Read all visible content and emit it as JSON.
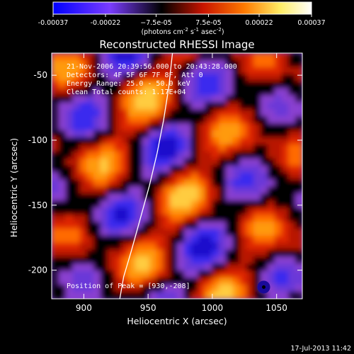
{
  "chart_data": {
    "type": "heatmap",
    "title": "Reconstructed RHESSI Image",
    "xlabel": "Heliocentric X (arcsec)",
    "ylabel": "Heliocentric Y (arcsec)",
    "xlim": [
      875,
      1070
    ],
    "ylim": [
      -222,
      -33
    ],
    "x_ticks": [
      900,
      950,
      1000,
      1050
    ],
    "y_ticks": [
      -50,
      -100,
      -150,
      -200
    ],
    "colorbar": {
      "range": [
        -0.00037,
        0.00037
      ],
      "ticks": [
        -0.00037,
        -0.00022,
        -7.5e-05,
        7.5e-05,
        0.00022,
        0.00037
      ],
      "tick_labels": [
        "-0.00037",
        "-0.00022",
        "−7.5e-05",
        "7.5e-05",
        "0.00022",
        "0.00037"
      ],
      "units_line1": "(photons cm",
      "units_exp1": "-2",
      "units_s": " s",
      "units_exp2": "-1",
      "units_asec": " asec",
      "units_exp3": "-2",
      "units_close": ")",
      "colormap": [
        "#0000ff",
        "#8a3dff",
        "#000000",
        "#d81b00",
        "#ff8800",
        "#ffff88",
        "#ffffff"
      ]
    },
    "annotations": [
      "21-Nov-2006 20:39:56.000 to 20:43:28.000",
      "Detectors: 4F 5F 6F 7F 8F, Att 0",
      "Energy Range: 25.0 - 50.0 keV",
      "Clean     Total counts: 1.17E+04"
    ],
    "peak_label": "Position of Peak = [930,-208]",
    "peak_position": [
      1040,
      -213
    ],
    "limb_points": [
      [
        969,
        -33
      ],
      [
        966,
        -60
      ],
      [
        962,
        -85
      ],
      [
        957,
        -110
      ],
      [
        951,
        -135
      ],
      [
        944,
        -160
      ],
      [
        937,
        -185
      ],
      [
        931,
        -205
      ],
      [
        928,
        -222
      ]
    ],
    "grid": false
  },
  "footer": {
    "timestamp": "17-Jul-2013 11:42"
  },
  "colors": {
    "background": "#000000",
    "foreground": "#ffffff"
  }
}
